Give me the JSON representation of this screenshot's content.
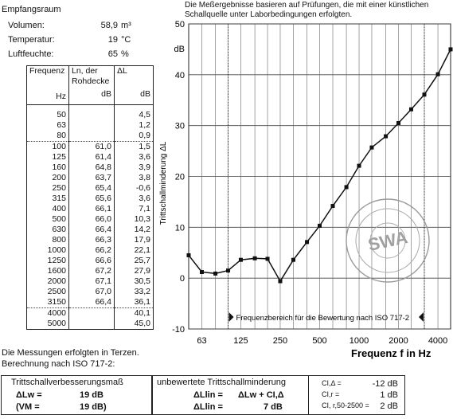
{
  "room": {
    "title": "Empfangsraum",
    "rows": [
      {
        "label": "Volumen:",
        "value": "58,9",
        "unit": "m³"
      },
      {
        "label": "Temperatur:",
        "value": "19",
        "unit": "°C"
      },
      {
        "label": "Luftfeuchte:",
        "value": "65",
        "unit": "%"
      }
    ]
  },
  "table": {
    "headers": [
      "Frequenz",
      "Ln, der Rohdecke",
      "ΔL"
    ],
    "header_line1": "Ln, der",
    "header_line2": "Rohdecke",
    "units": [
      "Hz",
      "dB",
      "dB"
    ],
    "rows": [
      [
        "50",
        "",
        "4,5"
      ],
      [
        "63",
        "",
        "1,2"
      ],
      [
        "80",
        "",
        "0,9"
      ],
      [
        "100",
        "61,0",
        "1,5"
      ],
      [
        "125",
        "61,4",
        "3,6"
      ],
      [
        "160",
        "64,8",
        "3,9"
      ],
      [
        "200",
        "63,7",
        "3,8"
      ],
      [
        "250",
        "65,4",
        "-0,6"
      ],
      [
        "315",
        "65,6",
        "3,6"
      ],
      [
        "400",
        "66,1",
        "7,1"
      ],
      [
        "500",
        "66,0",
        "10,3"
      ],
      [
        "630",
        "66,4",
        "14,2"
      ],
      [
        "800",
        "66,3",
        "17,9"
      ],
      [
        "1000",
        "66,2",
        "22,1"
      ],
      [
        "1250",
        "66,6",
        "25,7"
      ],
      [
        "1600",
        "67,2",
        "27,9"
      ],
      [
        "2000",
        "67,1",
        "30,5"
      ],
      [
        "2500",
        "67,0",
        "33,2"
      ],
      [
        "3150",
        "66,4",
        "36,1"
      ],
      [
        "4000",
        "",
        "40,1"
      ],
      [
        "5000",
        "",
        "45,0"
      ]
    ]
  },
  "note": "Die Meßergebnisse basieren auf Prüfungen, die mit einer künstlichen Schallquelle unter Laborbedingungen erfolgten.",
  "note_line1": "Die Meßergebnisse basieren auf Prüfungen, die mit einer künstlichen",
  "note_line2": "Schallquelle unter Laborbedingungen erfolgten.",
  "chart_data": {
    "type": "line",
    "ylabel": "Trittschallminderung ΔL",
    "xlabel": "Frequenz   f   in   Hz",
    "y_unit": "dB",
    "ylim": [
      -10,
      50
    ],
    "y_ticks": [
      "50",
      "40",
      "30",
      "20",
      "10",
      "0",
      "-10"
    ],
    "x_ticks": [
      "63",
      "125",
      "250",
      "500",
      "1000",
      "2000",
      "4000"
    ],
    "x": [
      50,
      63,
      80,
      100,
      125,
      160,
      200,
      250,
      315,
      400,
      500,
      630,
      800,
      1000,
      1250,
      1600,
      2000,
      2500,
      3150,
      4000,
      5000
    ],
    "series": [
      {
        "values": [
          4.5,
          1.2,
          0.9,
          1.5,
          3.6,
          3.9,
          3.8,
          -0.6,
          3.6,
          7.1,
          10.3,
          14.2,
          17.9,
          22.1,
          25.7,
          27.9,
          30.5,
          33.2,
          36.1,
          40.1,
          45.0
        ]
      }
    ],
    "annotation": "Frequenzbereich für die Bewertung nach  ISO 717-2",
    "grid": true
  },
  "stamp": {
    "text": "SWA"
  },
  "footer": {
    "line1": "Die Messungen erfolgten in Terzen.",
    "line2": "Berechnung nach ISO 717-2:",
    "box1_title": "Trittschallverbesserungsmaß",
    "lw_label": "ΔLw  =",
    "lw_value": "19 dB",
    "vm_label": "(VM  =",
    "vm_value": "19 dB)",
    "box2_title": "unbewertete Trittschallminderung",
    "lin_label": "ΔLlin  =",
    "lin_formula": "ΔLw + CI,Δ",
    "lin_label2": "ΔLlin  =",
    "lin_value": "7  dB",
    "c_rows": [
      {
        "label": "CI,Δ  =",
        "value": "-12 dB"
      },
      {
        "label": "CI,r  =",
        "value": "1 dB"
      },
      {
        "label": "CI, r,50-2500  =",
        "value": "2 dB"
      }
    ]
  }
}
